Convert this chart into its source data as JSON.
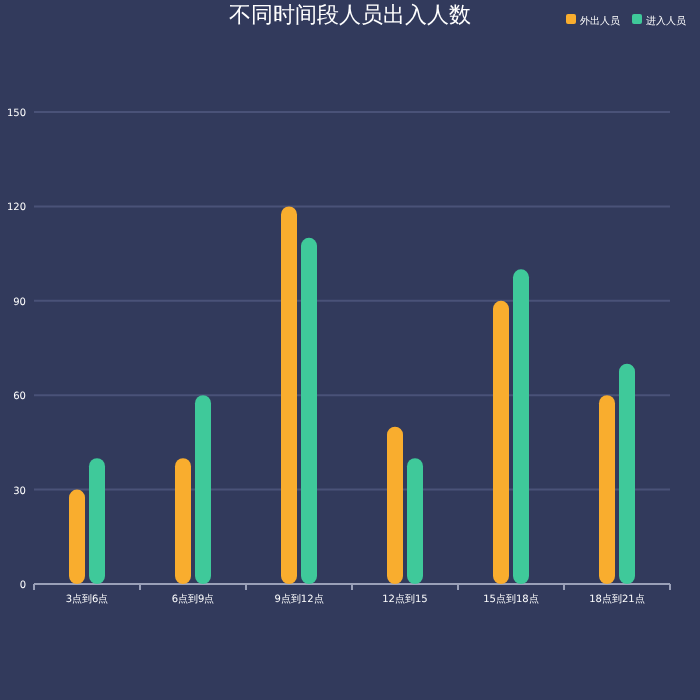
{
  "chart_data": {
    "type": "bar",
    "title": "不同时间段人员出入人数",
    "categories": [
      "3点到6点",
      "6点到9点",
      "9点到12点",
      "12点到15",
      "15点到18点",
      "18点到21点"
    ],
    "series": [
      {
        "name": "外出人员",
        "color": "#f9ad2e",
        "values": [
          30,
          40,
          120,
          50,
          90,
          60
        ]
      },
      {
        "name": "进入人员",
        "color": "#3fc99a",
        "values": [
          40,
          60,
          110,
          40,
          100,
          70
        ]
      }
    ],
    "ylim": [
      0,
      150
    ],
    "yticks": [
      0,
      30,
      60,
      90,
      120,
      150
    ],
    "grid": "y",
    "legend": "top right"
  }
}
